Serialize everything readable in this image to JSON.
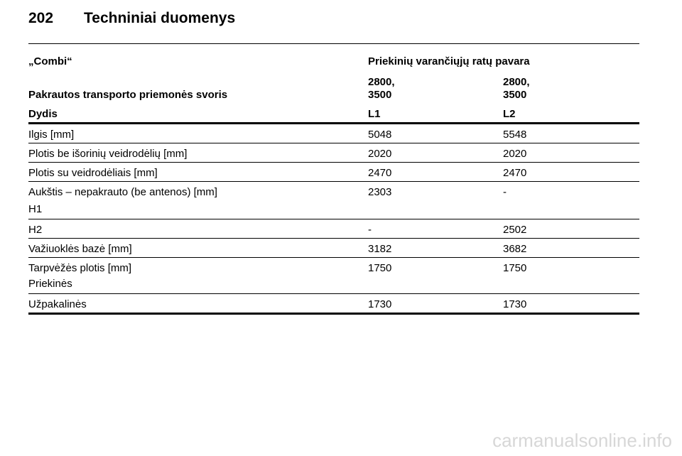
{
  "header": {
    "page_number": "202",
    "title": "Techniniai duomenys"
  },
  "table": {
    "model": "„Combi“",
    "drive": "Priekinių varančiųjų ratų pavara",
    "weight_label": "Pakrautos transporto priemonės svoris",
    "weight_values": [
      [
        "2800,",
        "3500"
      ],
      [
        "2800,",
        "3500"
      ]
    ],
    "size_label": "Dydis",
    "sizes": [
      "L1",
      "L2"
    ],
    "rows": [
      {
        "label": "Ilgis [mm]",
        "v1": "5048",
        "v2": "5548"
      },
      {
        "label": "Plotis be išorinių veidrodėlių [mm]",
        "v1": "2020",
        "v2": "2020"
      },
      {
        "label": "Plotis su veidrodėliais [mm]",
        "v1": "2470",
        "v2": "2470"
      },
      {
        "label": "Aukštis – nepakrauto (be antenos) [mm]",
        "sublabel": "H1",
        "v1": "2303",
        "v2": "-"
      },
      {
        "label": "H2",
        "v1": "-",
        "v2": "2502"
      },
      {
        "label": "Važiuoklės bazė [mm]",
        "v1": "3182",
        "v2": "3682"
      },
      {
        "label": "Tarpvėžės plotis [mm]",
        "sublabel": "Priekinės",
        "v1": "1750",
        "v2": "1750"
      },
      {
        "label": "Užpakalinės",
        "v1": "1730",
        "v2": "1730"
      }
    ]
  },
  "watermark": "carmanualsonline.info"
}
